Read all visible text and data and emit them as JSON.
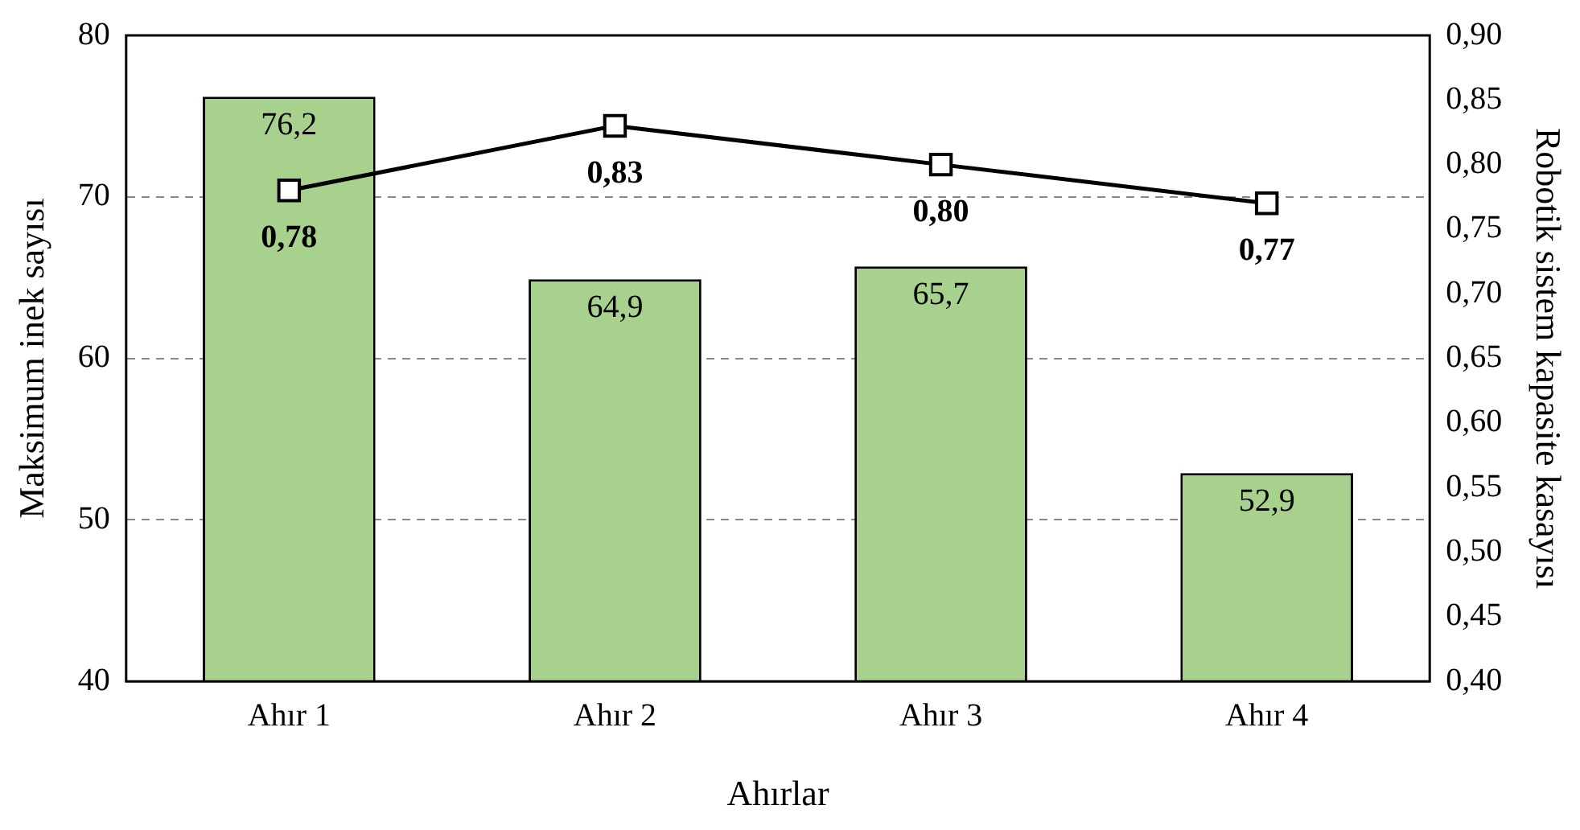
{
  "chart_data": {
    "type": "bar",
    "categories": [
      "Ahır 1",
      "Ahır 2",
      "Ahır 3",
      "Ahır 4"
    ],
    "xlabel": "Ahırlar",
    "ylabel": "Maksimum inek sayısı",
    "y2label": "Robotik sistem kapasite kasayısı",
    "ylim": [
      40,
      80
    ],
    "yticks": [
      40,
      50,
      60,
      70,
      80
    ],
    "y2lim": [
      0.4,
      0.9
    ],
    "y2ticks": [
      {
        "value": 0.4,
        "label": "0,40"
      },
      {
        "value": 0.45,
        "label": "0,45"
      },
      {
        "value": 0.5,
        "label": "0,50"
      },
      {
        "value": 0.55,
        "label": "0,55"
      },
      {
        "value": 0.6,
        "label": "0,60"
      },
      {
        "value": 0.65,
        "label": "0,65"
      },
      {
        "value": 0.7,
        "label": "0,70"
      },
      {
        "value": 0.75,
        "label": "0,75"
      },
      {
        "value": 0.8,
        "label": "0,80"
      },
      {
        "value": 0.85,
        "label": "0,85"
      },
      {
        "value": 0.9,
        "label": "0,90"
      }
    ],
    "grid": "y",
    "legend": false,
    "series": [
      {
        "color": "#a9d18e",
        "values": [
          76.2,
          64.9,
          65.7,
          52.9
        ],
        "value_labels": [
          "76,2",
          "64,9",
          "65,7",
          "52,9"
        ]
      },
      {
        "type": "line",
        "axis": "y2",
        "color": "#000000",
        "marker": "square",
        "values": [
          0.78,
          0.83,
          0.8,
          0.77
        ],
        "value_labels": [
          "0,78",
          "0,83",
          "0,80",
          "0,77"
        ]
      }
    ]
  }
}
